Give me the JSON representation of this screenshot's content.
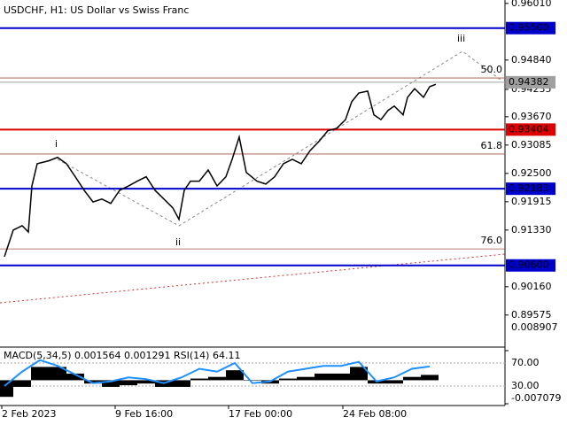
{
  "chart_data": [
    {
      "type": "line",
      "title": "USDCHF, H1:  US Dollar vs Swiss Franc",
      "x": [
        5,
        15,
        25,
        32,
        36,
        42,
        55,
        65,
        75,
        85,
        95,
        105,
        115,
        125,
        135,
        145,
        155,
        165,
        175,
        185,
        195,
        202,
        208,
        215,
        225,
        235,
        245,
        255,
        262,
        270,
        278,
        290,
        300,
        310,
        320,
        330,
        340,
        350,
        360,
        370,
        380,
        390,
        397,
        405,
        415,
        422,
        430,
        438,
        445,
        455,
        460,
        468,
        478,
        485,
        492
      ],
      "series": [
        {
          "color": "#000000",
          "values": [
            0.9078,
            0.9133,
            0.9142,
            0.9129,
            0.9224,
            0.927,
            0.9276,
            0.9283,
            0.927,
            0.9243,
            0.9215,
            0.9191,
            0.9197,
            0.9188,
            0.9215,
            0.9224,
            0.9234,
            0.9243,
            0.9215,
            0.9197,
            0.9179,
            0.9155,
            0.9215,
            0.9234,
            0.9234,
            0.9257,
            0.9224,
            0.9243,
            0.9279,
            0.9325,
            0.9252,
            0.9234,
            0.9228,
            0.9243,
            0.927,
            0.9279,
            0.927,
            0.9297,
            0.9316,
            0.9338,
            0.9343,
            0.9361,
            0.9398,
            0.9416,
            0.942,
            0.9371,
            0.9361,
            0.938,
            0.9389,
            0.9371,
            0.9407,
            0.9425,
            0.9407,
            0.9429,
            0.9434
          ]
        }
      ],
      "xlim": [
        0,
        570
      ],
      "xticks": [
        {
          "value": 2,
          "label": "2 Feb 2023"
        },
        {
          "value": 130,
          "label": "9 Feb 16:00"
        },
        {
          "value": 258,
          "label": "17 Feb 00:00"
        },
        {
          "value": 387,
          "label": "24 Feb 08:00"
        }
      ],
      "ylim": [
        0.8895,
        0.9608
      ],
      "yticks": [
        {
          "value": 0.9601,
          "label": "0.96010"
        },
        {
          "value": 0.9484,
          "label": "0.94840"
        },
        0.94235,
        {
          "value": 0.9367,
          "label": "0.93670"
        },
        0.93085,
        {
          "value": 0.925,
          "label": "0.92500"
        },
        0.91915,
        {
          "value": 0.9133,
          "label": "0.91330"
        },
        {
          "value": 0.9016,
          "label": "0.90160"
        },
        0.89575
      ],
      "levels": [
        {
          "value": 0.955,
          "label": "0.95500",
          "color": "#0000cc"
        },
        {
          "value": 0.94382,
          "label": "0.94382",
          "color": "#a0a0a0"
        },
        {
          "value": 0.93404,
          "label": "0.93404",
          "color": "#dd0000"
        },
        {
          "value": 0.92183,
          "label": "0.92183",
          "color": "#0000cc"
        },
        {
          "value": 0.906,
          "label": "0.90600",
          "color": "#0000cc"
        }
      ],
      "fib_levels": [
        {
          "value": 0.9447,
          "label": "50.0"
        },
        {
          "value": 0.929,
          "label": "61.8"
        },
        {
          "value": 0.9094,
          "label": "76.0"
        }
      ],
      "fib_color": "#a05040",
      "annotations": [
        "i",
        "ii",
        "iii"
      ]
    },
    {
      "type": "bar",
      "title": "MACD(5,34,5) 0.001564 0.001291 RSI(14) 64.11",
      "x": [
        5,
        25,
        45,
        65,
        85,
        105,
        125,
        145,
        165,
        185,
        205,
        225,
        245,
        265,
        285,
        305,
        325,
        345,
        365,
        385,
        405,
        425,
        445,
        465,
        485
      ],
      "series": [
        {
          "color": "#000000",
          "values": [
            -0.005,
            -0.002,
            0.004,
            0.004,
            0.002,
            -0.001,
            -0.002,
            -0.0015,
            -0.001,
            -0.002,
            -0.002,
            0.0005,
            0.001,
            0.003,
            0,
            -0.001,
            0.0005,
            0.001,
            0.002,
            0.002,
            0.004,
            -0.001,
            -0.001,
            0.001,
            0.0016
          ]
        },
        {
          "color": "#1e90ff",
          "axis": "y2",
          "values": [
            30,
            55,
            75,
            65,
            50,
            35,
            38,
            45,
            42,
            35,
            45,
            60,
            55,
            70,
            35,
            38,
            55,
            60,
            65,
            65,
            72,
            38,
            45,
            60,
            64
          ]
        }
      ],
      "xlim": [
        0,
        570
      ],
      "ylim": [
        -0.007079,
        0.008907
      ],
      "yticks": [
        0.008907,
        -0.007079
      ],
      "y2lim": [
        -0.8,
        91.5
      ],
      "y2ticks": [
        {
          "value": 70,
          "label": "70.00"
        },
        {
          "value": 30,
          "label": "30.00"
        }
      ]
    }
  ]
}
